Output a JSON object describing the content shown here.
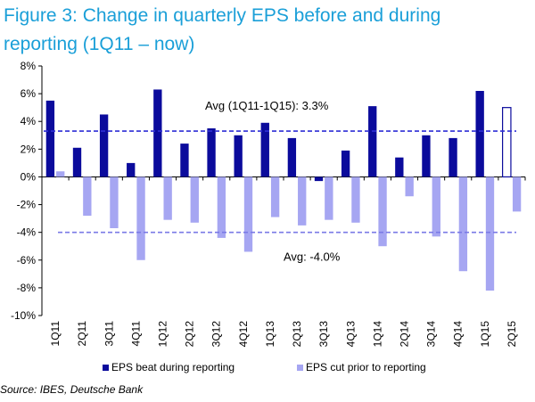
{
  "title_line1": "Figure 3: Change in quarterly EPS before and during",
  "title_line2": "reporting (1Q11 – now)",
  "source": "Source: IBES, Deutsche Bank",
  "colors": {
    "title": "#1a9fd8",
    "beat": "#0b0b9c",
    "cut": "#a6a6f2",
    "avg_line": "#2f2fd6",
    "cut_avg_line": "#7a7ae6"
  },
  "chart_data": {
    "type": "bar",
    "categories": [
      "1Q11",
      "2Q11",
      "3Q11",
      "4Q11",
      "1Q12",
      "2Q12",
      "3Q12",
      "4Q12",
      "1Q13",
      "2Q13",
      "3Q13",
      "4Q13",
      "1Q14",
      "2Q14",
      "3Q14",
      "4Q14",
      "1Q15",
      "2Q15"
    ],
    "series": [
      {
        "name": "EPS beat during reporting",
        "values": [
          5.5,
          2.1,
          4.5,
          1.0,
          6.3,
          2.4,
          3.5,
          3.0,
          3.9,
          2.8,
          -0.3,
          1.9,
          5.1,
          1.4,
          3.0,
          2.8,
          6.2,
          5.0
        ],
        "partial_last": true
      },
      {
        "name": "EPS cut prior to reporting",
        "values": [
          0.4,
          -2.8,
          -3.7,
          -6.0,
          -3.1,
          -3.3,
          -4.4,
          -5.4,
          -2.9,
          -3.5,
          -3.1,
          -3.3,
          -5.0,
          -1.4,
          -4.3,
          -6.8,
          -8.2,
          -2.5
        ]
      }
    ],
    "averages": [
      {
        "label": "Avg (1Q11-1Q15): 3.3%",
        "value": 3.3
      },
      {
        "label": "Avg: -4.0%",
        "value": -4.0
      }
    ],
    "y_ticks": [
      "8%",
      "6%",
      "4%",
      "2%",
      "0%",
      "-2%",
      "-4%",
      "-6%",
      "-8%",
      "-10%"
    ],
    "ylim": [
      -10,
      8
    ],
    "legend_position": "bottom"
  }
}
